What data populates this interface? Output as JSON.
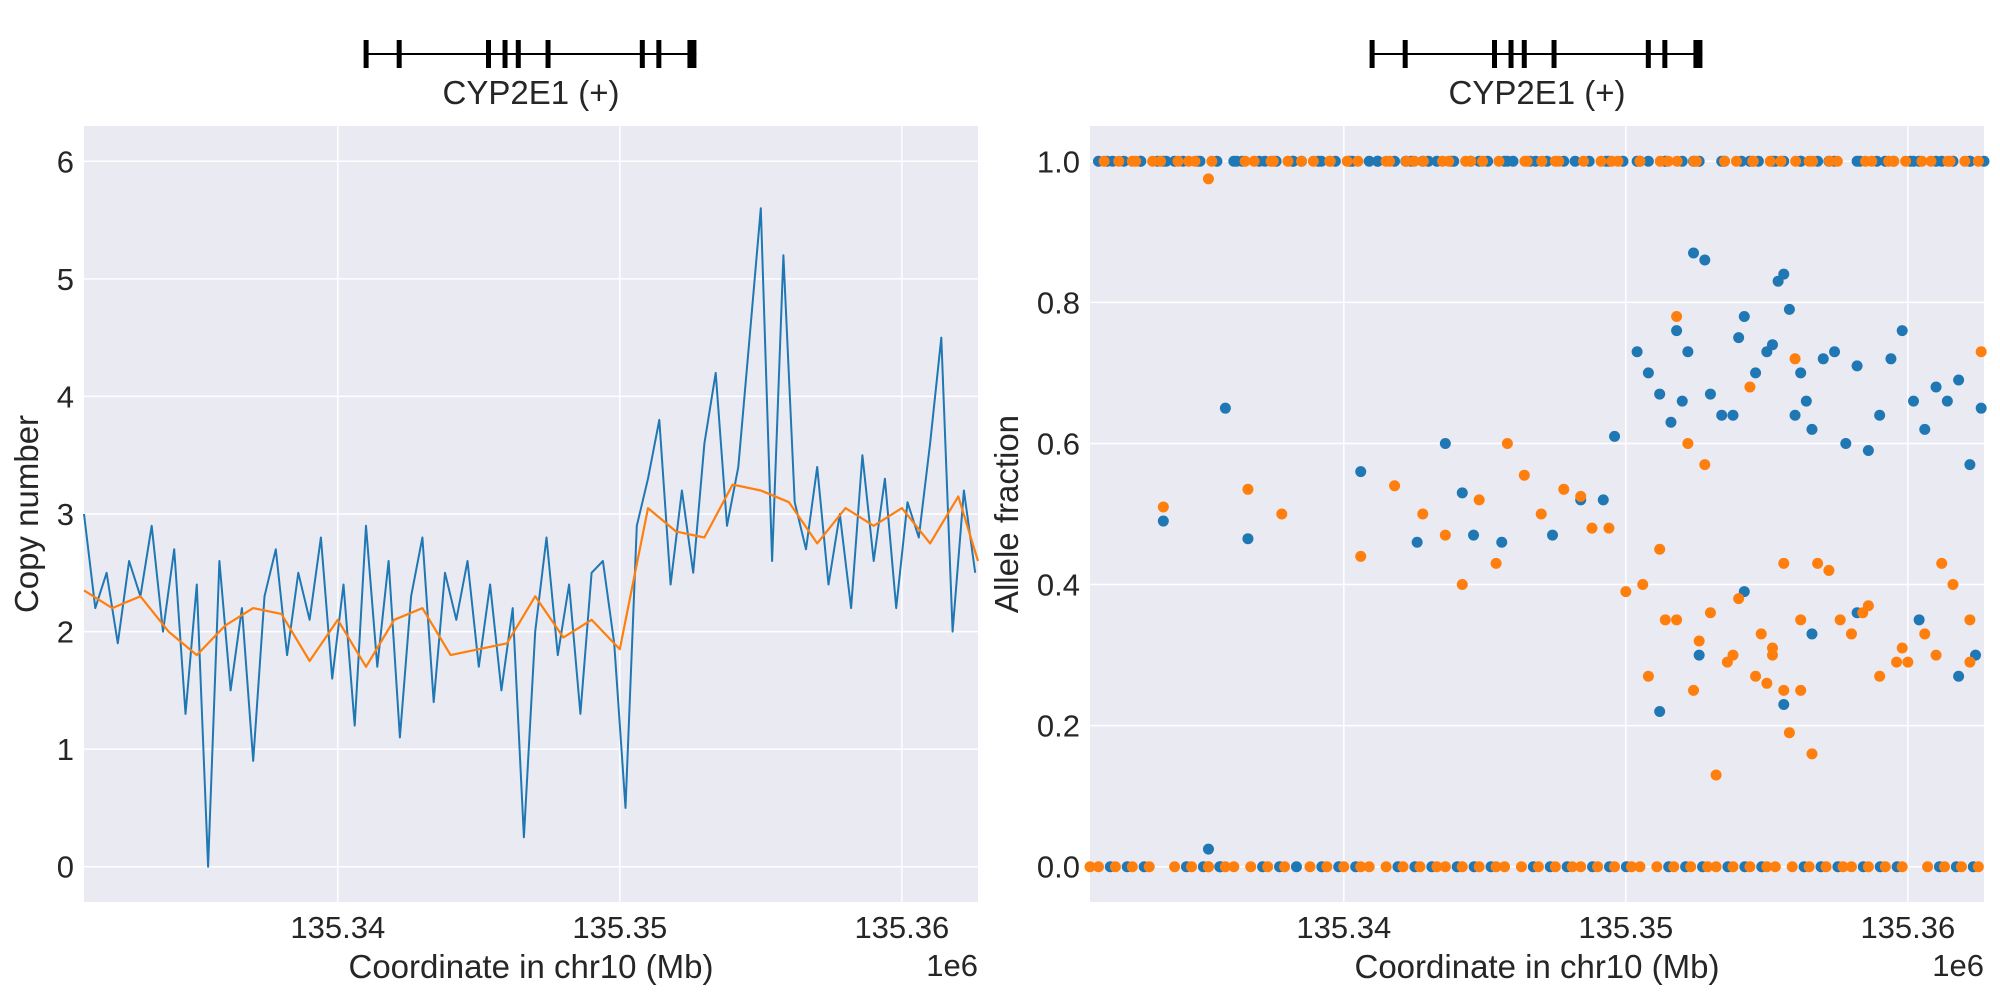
{
  "chart_data": [
    {
      "type": "line",
      "gene_track": {
        "label": "CYP2E1 (+)",
        "strand": "+",
        "exon_count": 9
      },
      "xlabel": "Coordinate in chr10 (Mb)",
      "ylabel": "Copy number",
      "x_offset_text": "1e6",
      "xlim": [
        135.331,
        135.3627
      ],
      "ylim": [
        -0.3,
        6.3
      ],
      "xticks": [
        135.34,
        135.35,
        135.36
      ],
      "xtick_labels": [
        "135.34",
        "135.35",
        "135.36"
      ],
      "yticks": [
        0,
        1,
        2,
        3,
        4,
        5,
        6
      ],
      "ytick_labels": [
        "0",
        "1",
        "2",
        "3",
        "4",
        "5",
        "6"
      ],
      "grid": true,
      "series": [
        {
          "color": "#1f77b4",
          "x": [
            135.331,
            135.3314,
            135.3318,
            135.3322,
            135.3326,
            135.333,
            135.3334,
            135.3338,
            135.3342,
            135.3346,
            135.335,
            135.3354,
            135.3358,
            135.3362,
            135.3366,
            135.337,
            135.3374,
            135.3378,
            135.3382,
            135.3386,
            135.339,
            135.3394,
            135.3398,
            135.3402,
            135.3406,
            135.341,
            135.3414,
            135.3418,
            135.3422,
            135.3426,
            135.343,
            135.3434,
            135.3438,
            135.3442,
            135.3446,
            135.345,
            135.3454,
            135.3458,
            135.3462,
            135.3466,
            135.347,
            135.3474,
            135.3478,
            135.3482,
            135.3486,
            135.349,
            135.3494,
            135.3498,
            135.3502,
            135.3506,
            135.351,
            135.3514,
            135.3518,
            135.3522,
            135.3526,
            135.353,
            135.3534,
            135.3538,
            135.3542,
            135.3546,
            135.355,
            135.3554,
            135.3558,
            135.3562,
            135.3566,
            135.357,
            135.3574,
            135.3578,
            135.3582,
            135.3586,
            135.359,
            135.3594,
            135.3598,
            135.3602,
            135.3606,
            135.361,
            135.3614,
            135.3618,
            135.3622,
            135.3626
          ],
          "y": [
            3.0,
            2.2,
            2.5,
            1.9,
            2.6,
            2.3,
            2.9,
            2.0,
            2.7,
            1.3,
            2.4,
            0.0,
            2.6,
            1.5,
            2.2,
            0.9,
            2.3,
            2.7,
            1.8,
            2.5,
            2.1,
            2.8,
            1.6,
            2.4,
            1.2,
            2.9,
            1.7,
            2.6,
            1.1,
            2.3,
            2.8,
            1.4,
            2.5,
            2.1,
            2.6,
            1.7,
            2.4,
            1.5,
            2.2,
            0.25,
            2.0,
            2.8,
            1.8,
            2.4,
            1.3,
            2.5,
            2.6,
            1.9,
            0.5,
            2.9,
            3.3,
            3.8,
            2.4,
            3.2,
            2.5,
            3.6,
            4.2,
            2.9,
            3.4,
            4.5,
            5.6,
            2.6,
            5.2,
            3.1,
            2.7,
            3.4,
            2.4,
            3.0,
            2.2,
            3.5,
            2.6,
            3.3,
            2.2,
            3.1,
            2.8,
            3.6,
            4.5,
            2.0,
            3.2,
            2.5
          ]
        },
        {
          "color": "#ff7f0e",
          "x": [
            135.331,
            135.332,
            135.333,
            135.334,
            135.335,
            135.336,
            135.337,
            135.338,
            135.339,
            135.34,
            135.341,
            135.342,
            135.343,
            135.344,
            135.345,
            135.346,
            135.347,
            135.348,
            135.349,
            135.35,
            135.351,
            135.352,
            135.353,
            135.354,
            135.355,
            135.356,
            135.357,
            135.358,
            135.359,
            135.36,
            135.361,
            135.362,
            135.3627
          ],
          "y": [
            2.35,
            2.2,
            2.3,
            2.0,
            1.8,
            2.05,
            2.2,
            2.15,
            1.75,
            2.1,
            1.7,
            2.1,
            2.2,
            1.8,
            1.85,
            1.9,
            2.3,
            1.95,
            2.1,
            1.85,
            3.05,
            2.85,
            2.8,
            3.25,
            3.2,
            3.1,
            2.75,
            3.05,
            2.9,
            3.05,
            2.75,
            3.15,
            2.6
          ]
        }
      ]
    },
    {
      "type": "scatter",
      "gene_track": {
        "label": "CYP2E1 (+)",
        "strand": "+",
        "exon_count": 9
      },
      "xlabel": "Coordinate in chr10 (Mb)",
      "ylabel": "Allele fraction",
      "x_offset_text": "1e6",
      "xlim": [
        135.331,
        135.3627
      ],
      "ylim": [
        -0.05,
        1.05
      ],
      "xticks": [
        135.34,
        135.35,
        135.36
      ],
      "xtick_labels": [
        "135.34",
        "135.35",
        "135.36"
      ],
      "yticks": [
        0.0,
        0.2,
        0.4,
        0.6,
        0.8,
        1.0
      ],
      "ytick_labels": [
        "0.0",
        "0.2",
        "0.4",
        "0.6",
        "0.8",
        "1.0"
      ],
      "grid": true,
      "series": [
        {
          "color": "#1f77b4",
          "x": [
            135.3318,
            135.3328,
            135.3336,
            135.334,
            135.3348,
            135.3362,
            135.3372,
            135.3382,
            135.3392,
            135.3402,
            135.3412,
            135.3422,
            135.3428,
            135.3438,
            135.3448,
            135.3458,
            135.3468,
            135.3482,
            135.3494,
            135.3504,
            135.3514,
            135.3524,
            135.3534,
            135.3544,
            135.3552,
            135.3562,
            135.3572,
            135.3582,
            135.3592,
            135.3602,
            135.3612,
            135.3622,
            135.3627,
            135.3336,
            135.3358,
            135.3366,
            135.3406,
            135.3426,
            135.3436,
            135.3442,
            135.3446,
            135.3456,
            135.3474,
            135.3484,
            135.3492,
            135.3496,
            135.3504,
            135.3508,
            135.3512,
            135.3516,
            135.3518,
            135.352,
            135.3522,
            135.3524,
            135.3528,
            135.353,
            135.3534,
            135.3538,
            135.354,
            135.3542,
            135.3546,
            135.355,
            135.3552,
            135.3554,
            135.3556,
            135.3558,
            135.356,
            135.3562,
            135.3564,
            135.3566,
            135.357,
            135.3574,
            135.3578,
            135.3582,
            135.3586,
            135.359,
            135.3594,
            135.3598,
            135.3602,
            135.3606,
            135.361,
            135.3614,
            135.3618,
            135.3622,
            135.3626,
            135.3512,
            135.3526,
            135.3542,
            135.3556,
            135.3566,
            135.3582,
            135.3604,
            135.3618,
            135.3624,
            135.3352,
            135.3356
          ],
          "y": [
            1.0,
            1.0,
            1.0,
            1.0,
            1.0,
            1.0,
            1.0,
            1.0,
            1.0,
            1.0,
            1.0,
            1.0,
            1.0,
            1.0,
            1.0,
            1.0,
            1.0,
            1.0,
            1.0,
            1.0,
            1.0,
            1.0,
            1.0,
            1.0,
            1.0,
            1.0,
            1.0,
            1.0,
            1.0,
            1.0,
            1.0,
            1.0,
            1.0,
            0.49,
            0.65,
            0.465,
            0.56,
            0.46,
            0.6,
            0.53,
            0.47,
            0.46,
            0.47,
            0.52,
            0.52,
            0.61,
            0.73,
            0.7,
            0.67,
            0.63,
            0.76,
            0.66,
            0.73,
            0.87,
            0.86,
            0.67,
            0.64,
            0.64,
            0.75,
            0.78,
            0.7,
            0.73,
            0.74,
            0.83,
            0.84,
            0.79,
            0.64,
            0.7,
            0.66,
            0.62,
            0.72,
            0.73,
            0.6,
            0.71,
            0.59,
            0.64,
            0.72,
            0.76,
            0.66,
            0.62,
            0.68,
            0.66,
            0.69,
            0.57,
            0.65,
            0.22,
            0.3,
            0.39,
            0.23,
            0.33,
            0.36,
            0.35,
            0.27,
            0.3,
            0.025,
            0.0
          ],
          "y_extra_zero_row": true
        },
        {
          "color": "#ff7f0e",
          "x": [
            135.3315,
            135.3325,
            135.3335,
            135.3345,
            135.3352,
            135.3365,
            135.3375,
            135.3385,
            135.3395,
            135.3405,
            135.3415,
            135.3425,
            135.3435,
            135.3445,
            135.3455,
            135.3465,
            135.3475,
            135.3485,
            135.3495,
            135.3505,
            135.3515,
            135.3525,
            135.3535,
            135.3545,
            135.3555,
            135.3565,
            135.3575,
            135.3585,
            135.3595,
            135.3605,
            135.3615,
            135.3625,
            135.3352,
            135.3336,
            135.3366,
            135.3378,
            135.3406,
            135.3418,
            135.3428,
            135.3436,
            135.3442,
            135.3448,
            135.3454,
            135.3458,
            135.3464,
            135.347,
            135.3478,
            135.3484,
            135.3488,
            135.3494,
            135.35,
            135.3506,
            135.3512,
            135.3514,
            135.3518,
            135.3522,
            135.3526,
            135.353,
            135.3536,
            135.3538,
            135.354,
            135.3544,
            135.3548,
            135.355,
            135.3552,
            135.3556,
            135.3558,
            135.356,
            135.3562,
            135.3566,
            135.3572,
            135.3576,
            135.358,
            135.3586,
            135.359,
            135.3596,
            135.36,
            135.3606,
            135.361,
            135.3616,
            135.3622,
            135.3626,
            135.3508,
            135.3518,
            135.3524,
            135.3528,
            135.3532,
            135.3546,
            135.3552,
            135.3556,
            135.3562,
            135.3568,
            135.3584,
            135.3598,
            135.3612,
            135.3622
          ],
          "y": [
            1.0,
            1.0,
            1.0,
            1.0,
            0.975,
            1.0,
            1.0,
            1.0,
            1.0,
            1.0,
            1.0,
            1.0,
            1.0,
            1.0,
            1.0,
            1.0,
            1.0,
            1.0,
            1.0,
            1.0,
            1.0,
            1.0,
            1.0,
            1.0,
            1.0,
            1.0,
            1.0,
            1.0,
            1.0,
            1.0,
            1.0,
            1.0,
            0.0,
            0.51,
            0.535,
            0.5,
            0.44,
            0.54,
            0.5,
            0.47,
            0.4,
            0.52,
            0.43,
            0.6,
            0.555,
            0.5,
            0.535,
            0.525,
            0.48,
            0.48,
            0.39,
            0.4,
            0.45,
            0.35,
            0.78,
            0.6,
            0.32,
            0.36,
            0.29,
            0.3,
            0.38,
            0.68,
            0.33,
            0.26,
            0.3,
            0.43,
            0.19,
            0.72,
            0.35,
            0.16,
            0.42,
            0.35,
            0.33,
            0.37,
            0.27,
            0.29,
            0.29,
            0.33,
            0.3,
            0.4,
            0.35,
            0.73,
            0.27,
            0.35,
            0.25,
            0.57,
            0.13,
            0.27,
            0.31,
            0.25,
            0.25,
            0.43,
            0.36,
            0.31,
            0.43,
            0.29
          ],
          "y_extra_zero_row": true
        }
      ]
    }
  ]
}
